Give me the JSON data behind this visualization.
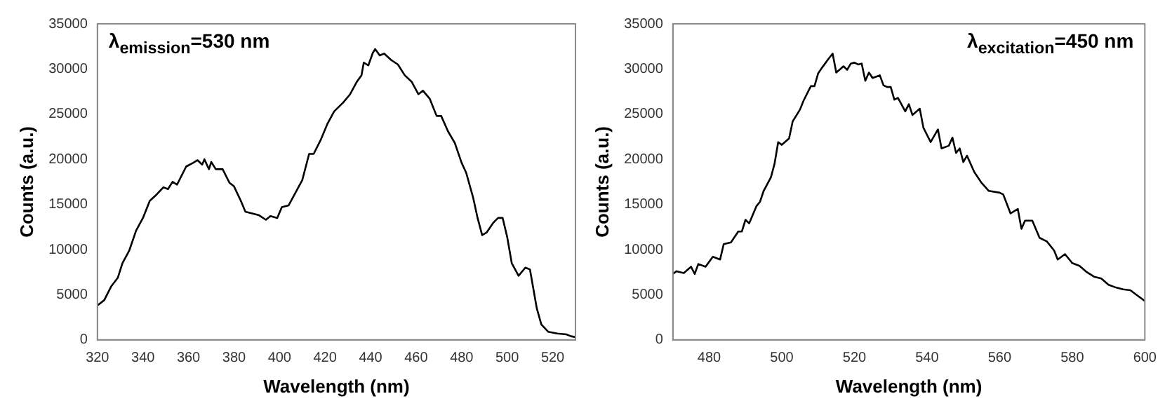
{
  "chart_data": [
    {
      "type": "line",
      "xlabel": "Wavelength (nm)",
      "ylabel": "Counts (a.u.)",
      "annotations": [
        "λ$_{emission}$=530 nm"
      ],
      "color": "#000000",
      "grid": false,
      "marker": "none",
      "line_style": "solid",
      "xlim": [
        320,
        530
      ],
      "xticks": [
        320,
        340,
        360,
        380,
        400,
        420,
        440,
        460,
        480,
        500,
        520
      ],
      "ylim": [
        0,
        35000
      ],
      "yticks": [
        0,
        5000,
        10000,
        15000,
        20000,
        25000,
        30000,
        35000
      ],
      "x": [
        320,
        323,
        326,
        329,
        331,
        334,
        337,
        340,
        343,
        346,
        349,
        351,
        353,
        355,
        357,
        359,
        362,
        364,
        366,
        367,
        369,
        370,
        372,
        375,
        378,
        380,
        383,
        385,
        388,
        391,
        394,
        396,
        399,
        401,
        404,
        407,
        410,
        413,
        415,
        418,
        421,
        424,
        428,
        431,
        434,
        436,
        437,
        439,
        441,
        442,
        444,
        446,
        449,
        452,
        455,
        458,
        461,
        463,
        466,
        469,
        471,
        474,
        477,
        480,
        482,
        485,
        487,
        489,
        491,
        494,
        496,
        498,
        500,
        502,
        505,
        508,
        510,
        513,
        515,
        518,
        522,
        526,
        528,
        530
      ],
      "values": [
        3800,
        4400,
        5900,
        6900,
        8500,
        9900,
        12100,
        13500,
        15400,
        16100,
        16900,
        16700,
        17500,
        17200,
        18200,
        19200,
        19600,
        19900,
        19400,
        20000,
        18900,
        19700,
        18900,
        18900,
        17400,
        17000,
        15400,
        14200,
        14000,
        13800,
        13300,
        13700,
        13500,
        14700,
        14900,
        16300,
        17700,
        20600,
        20600,
        22100,
        23900,
        25300,
        26300,
        27200,
        28600,
        29300,
        30700,
        30400,
        31800,
        32200,
        31500,
        31700,
        31000,
        30500,
        29300,
        28600,
        27200,
        27600,
        26700,
        24800,
        24800,
        23100,
        21800,
        19600,
        18500,
        15800,
        13500,
        11600,
        11900,
        13000,
        13500,
        13500,
        11400,
        8500,
        7100,
        8000,
        7800,
        3500,
        1700,
        900,
        700,
        600,
        400,
        300
      ]
    },
    {
      "type": "line",
      "xlabel": "Wavelength (nm)",
      "ylabel": "Counts (a.u.)",
      "annotations": [
        "λ$_{excitation}$=450 nm"
      ],
      "color": "#000000",
      "grid": false,
      "marker": "none",
      "line_style": "solid",
      "xlim": [
        470,
        600
      ],
      "xticks": [
        480,
        500,
        520,
        540,
        560,
        580,
        600
      ],
      "ylim": [
        0,
        35000
      ],
      "yticks": [
        0,
        5000,
        10000,
        15000,
        20000,
        25000,
        30000,
        35000
      ],
      "x": [
        470,
        471,
        473,
        475,
        476,
        477,
        479,
        481,
        483,
        484,
        486,
        488,
        489,
        490,
        491,
        493,
        494,
        495,
        497,
        498,
        499,
        500,
        502,
        503,
        505,
        506,
        508,
        509,
        510,
        511,
        513,
        514,
        515,
        517,
        518,
        519,
        520,
        521,
        522,
        523,
        524,
        525,
        527,
        528,
        529,
        530,
        531,
        532,
        534,
        535,
        536,
        538,
        539,
        541,
        543,
        544,
        546,
        547,
        548,
        549,
        550,
        551,
        553,
        555,
        557,
        560,
        561,
        563,
        565,
        566,
        567,
        569,
        571,
        573,
        575,
        576,
        578,
        580,
        582,
        584,
        586,
        588,
        590,
        592,
        594,
        596,
        598,
        600
      ],
      "values": [
        7300,
        7600,
        7400,
        8100,
        7300,
        8400,
        8100,
        9200,
        8900,
        10600,
        10800,
        12000,
        12000,
        13300,
        12900,
        14800,
        15300,
        16500,
        18000,
        19500,
        21900,
        21600,
        22300,
        24200,
        25500,
        26500,
        28100,
        28100,
        29500,
        30100,
        31200,
        31700,
        29600,
        30300,
        29900,
        30600,
        30700,
        30500,
        30600,
        28700,
        29600,
        29000,
        29300,
        28200,
        28000,
        28000,
        26600,
        26800,
        25300,
        26100,
        24900,
        25600,
        23500,
        21900,
        23300,
        21200,
        21500,
        22400,
        20700,
        21200,
        19700,
        20400,
        18600,
        17400,
        16500,
        16300,
        16100,
        14000,
        14500,
        12300,
        13200,
        13200,
        11300,
        10900,
        9900,
        8900,
        9500,
        8500,
        8200,
        7500,
        7000,
        6800,
        6100,
        5800,
        5600,
        5500,
        4900,
        4300
      ]
    }
  ]
}
